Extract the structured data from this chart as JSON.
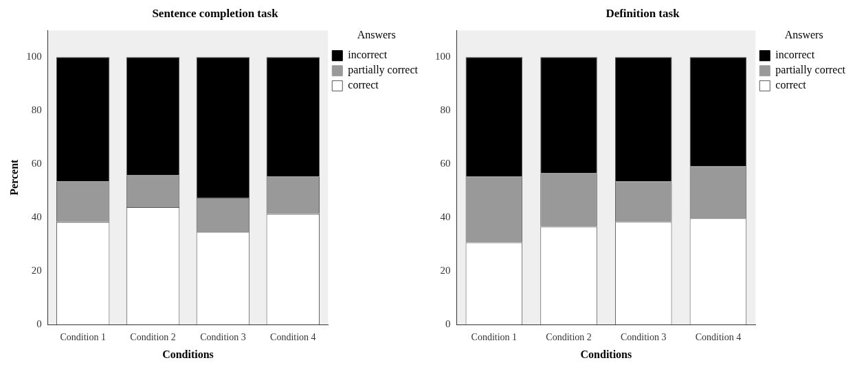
{
  "chart_data": [
    {
      "type": "bar",
      "title": "Sentence completion task",
      "xlabel": "Conditions",
      "ylabel": "Percent",
      "legend_title": "Answers",
      "categories": [
        "Condition 1",
        "Condition 2",
        "Condition 3",
        "Condition 4"
      ],
      "stacked": true,
      "legend": "top right",
      "grid": false,
      "ylim": [
        0,
        110
      ],
      "yticks": [
        0,
        20,
        40,
        60,
        80,
        100
      ],
      "series": [
        {
          "name": "correct",
          "color": "#ffffff",
          "values": [
            38.3,
            43.9,
            34.6,
            41.4
          ]
        },
        {
          "name": "partially correct",
          "color": "#999999",
          "values": [
            15.2,
            11.9,
            12.7,
            13.9
          ]
        },
        {
          "name": "incorrect",
          "color": "#000000",
          "values": [
            46.5,
            44.2,
            52.7,
            44.7
          ]
        }
      ]
    },
    {
      "type": "bar",
      "title": "Definition task",
      "xlabel": "Conditions",
      "legend_title": "Answers",
      "categories": [
        "Condition 1",
        "Condition 2",
        "Condition 3",
        "Condition 4"
      ],
      "stacked": true,
      "legend": "top right",
      "grid": false,
      "ylim": [
        0,
        110
      ],
      "yticks": [
        0,
        20,
        40,
        60,
        80,
        100
      ],
      "series": [
        {
          "name": "correct",
          "color": "#ffffff",
          "values": [
            30.7,
            36.6,
            38.4,
            39.7
          ]
        },
        {
          "name": "partially correct",
          "color": "#999999",
          "values": [
            24.7,
            20.0,
            15.2,
            19.5
          ]
        },
        {
          "name": "incorrect",
          "color": "#000000",
          "values": [
            44.6,
            43.4,
            46.4,
            40.8
          ]
        }
      ]
    }
  ]
}
